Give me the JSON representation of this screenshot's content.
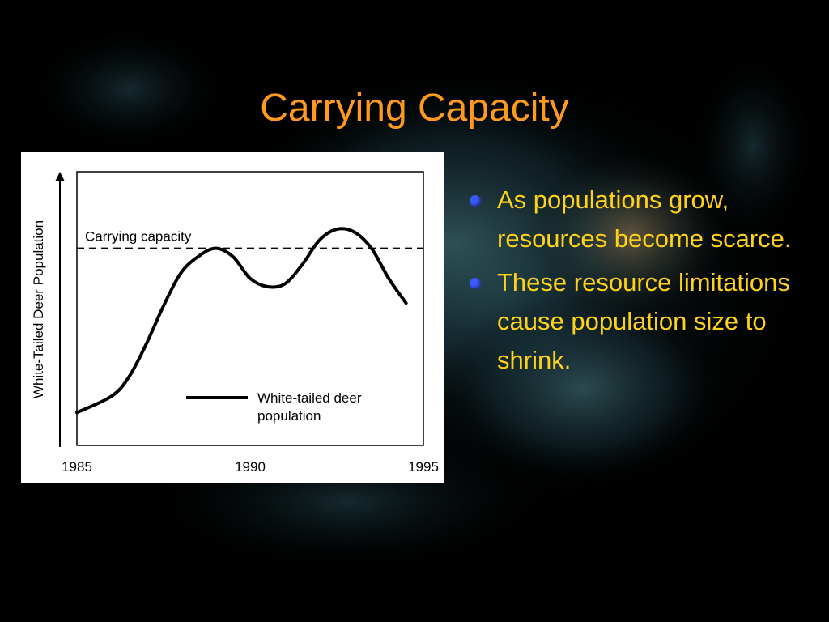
{
  "slide": {
    "title": "Carrying Capacity",
    "bullets": [
      "As populations grow, resources become scarce.",
      "These resource limitations cause population size to shrink."
    ]
  },
  "colors": {
    "background": "#000000",
    "title": "#FF9A1F",
    "bullet_text": "#FFD21A",
    "bullet_marker": "#3B5BFF",
    "chart_background": "#FFFFFF",
    "chart_ink": "#000000"
  },
  "chart_data": {
    "type": "line",
    "ylabel": "White-Tailed Deer Population",
    "xlabel": "",
    "xlim": [
      1985,
      1995
    ],
    "ylim": [
      0,
      100
    ],
    "x_ticks": [
      "1985",
      "1990",
      "1995"
    ],
    "y_ticks": [],
    "grid": false,
    "legend_position": "bottom-right",
    "reference_lines": [
      {
        "label": "Carrying capacity",
        "y": 72,
        "style": "dashed"
      }
    ],
    "series": [
      {
        "name": "White-tailed deer population",
        "x": [
          1985,
          1986,
          1986.5,
          1987,
          1987.5,
          1988,
          1988.5,
          1989,
          1989.5,
          1990,
          1990.5,
          1991,
          1991.5,
          1992,
          1992.5,
          1993,
          1993.5,
          1994,
          1994.5
        ],
        "y": [
          12,
          18,
          25,
          37,
          51,
          63,
          69,
          72,
          69,
          61,
          58,
          59,
          66,
          75,
          79,
          78,
          72,
          61,
          52
        ]
      }
    ]
  }
}
